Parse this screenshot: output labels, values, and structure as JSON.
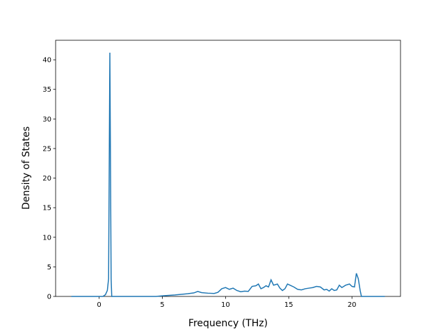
{
  "chart_data": {
    "type": "line",
    "x_label": "Frequency (THz)",
    "y_label": "Density of States",
    "x": [
      -2.2,
      0.3,
      0.5,
      0.65,
      0.75,
      0.85,
      0.95,
      1.0,
      4.5,
      5,
      6,
      7,
      7.5,
      7.8,
      8.1,
      8.6,
      9.1,
      9.4,
      9.7,
      10,
      10.3,
      10.6,
      10.9,
      11.2,
      11.5,
      11.8,
      12.1,
      12.4,
      12.6,
      12.8,
      13,
      13.2,
      13.4,
      13.6,
      13.8,
      14.1,
      14.3,
      14.5,
      14.7,
      14.9,
      15.1,
      15.4,
      15.7,
      16,
      16.3,
      16.6,
      16.9,
      17.2,
      17.5,
      17.8,
      18,
      18.2,
      18.4,
      18.6,
      18.8,
      19,
      19.2,
      19.5,
      19.8,
      20.0,
      20.2,
      20.35,
      20.5,
      20.65,
      20.75,
      22.6
    ],
    "series": [
      {
        "color": "#1f77b4",
        "values": [
          0,
          0,
          0.3,
          1,
          3,
          41.2,
          3,
          0,
          0,
          0.1,
          0.25,
          0.45,
          0.6,
          0.85,
          0.65,
          0.55,
          0.5,
          0.7,
          1.3,
          1.5,
          1.2,
          1.4,
          1.0,
          0.8,
          0.9,
          0.85,
          1.7,
          1.8,
          2.1,
          1.3,
          1.5,
          1.8,
          1.6,
          2.8,
          1.9,
          2.1,
          1.4,
          1.0,
          1.3,
          2.1,
          1.9,
          1.6,
          1.2,
          1.1,
          1.3,
          1.4,
          1.5,
          1.7,
          1.6,
          1.1,
          1.2,
          0.9,
          1.3,
          1.0,
          1.1,
          1.9,
          1.5,
          1.9,
          2.1,
          1.7,
          1.6,
          3.9,
          3.0,
          1.0,
          0,
          0
        ]
      }
    ],
    "xlim": [
      -3.44,
      23.84
    ],
    "ylim": [
      0,
      43.3
    ],
    "xticks": [
      0,
      5,
      10,
      15,
      20
    ],
    "yticks": [
      0,
      5,
      10,
      15,
      20,
      25,
      30,
      35,
      40
    ]
  }
}
